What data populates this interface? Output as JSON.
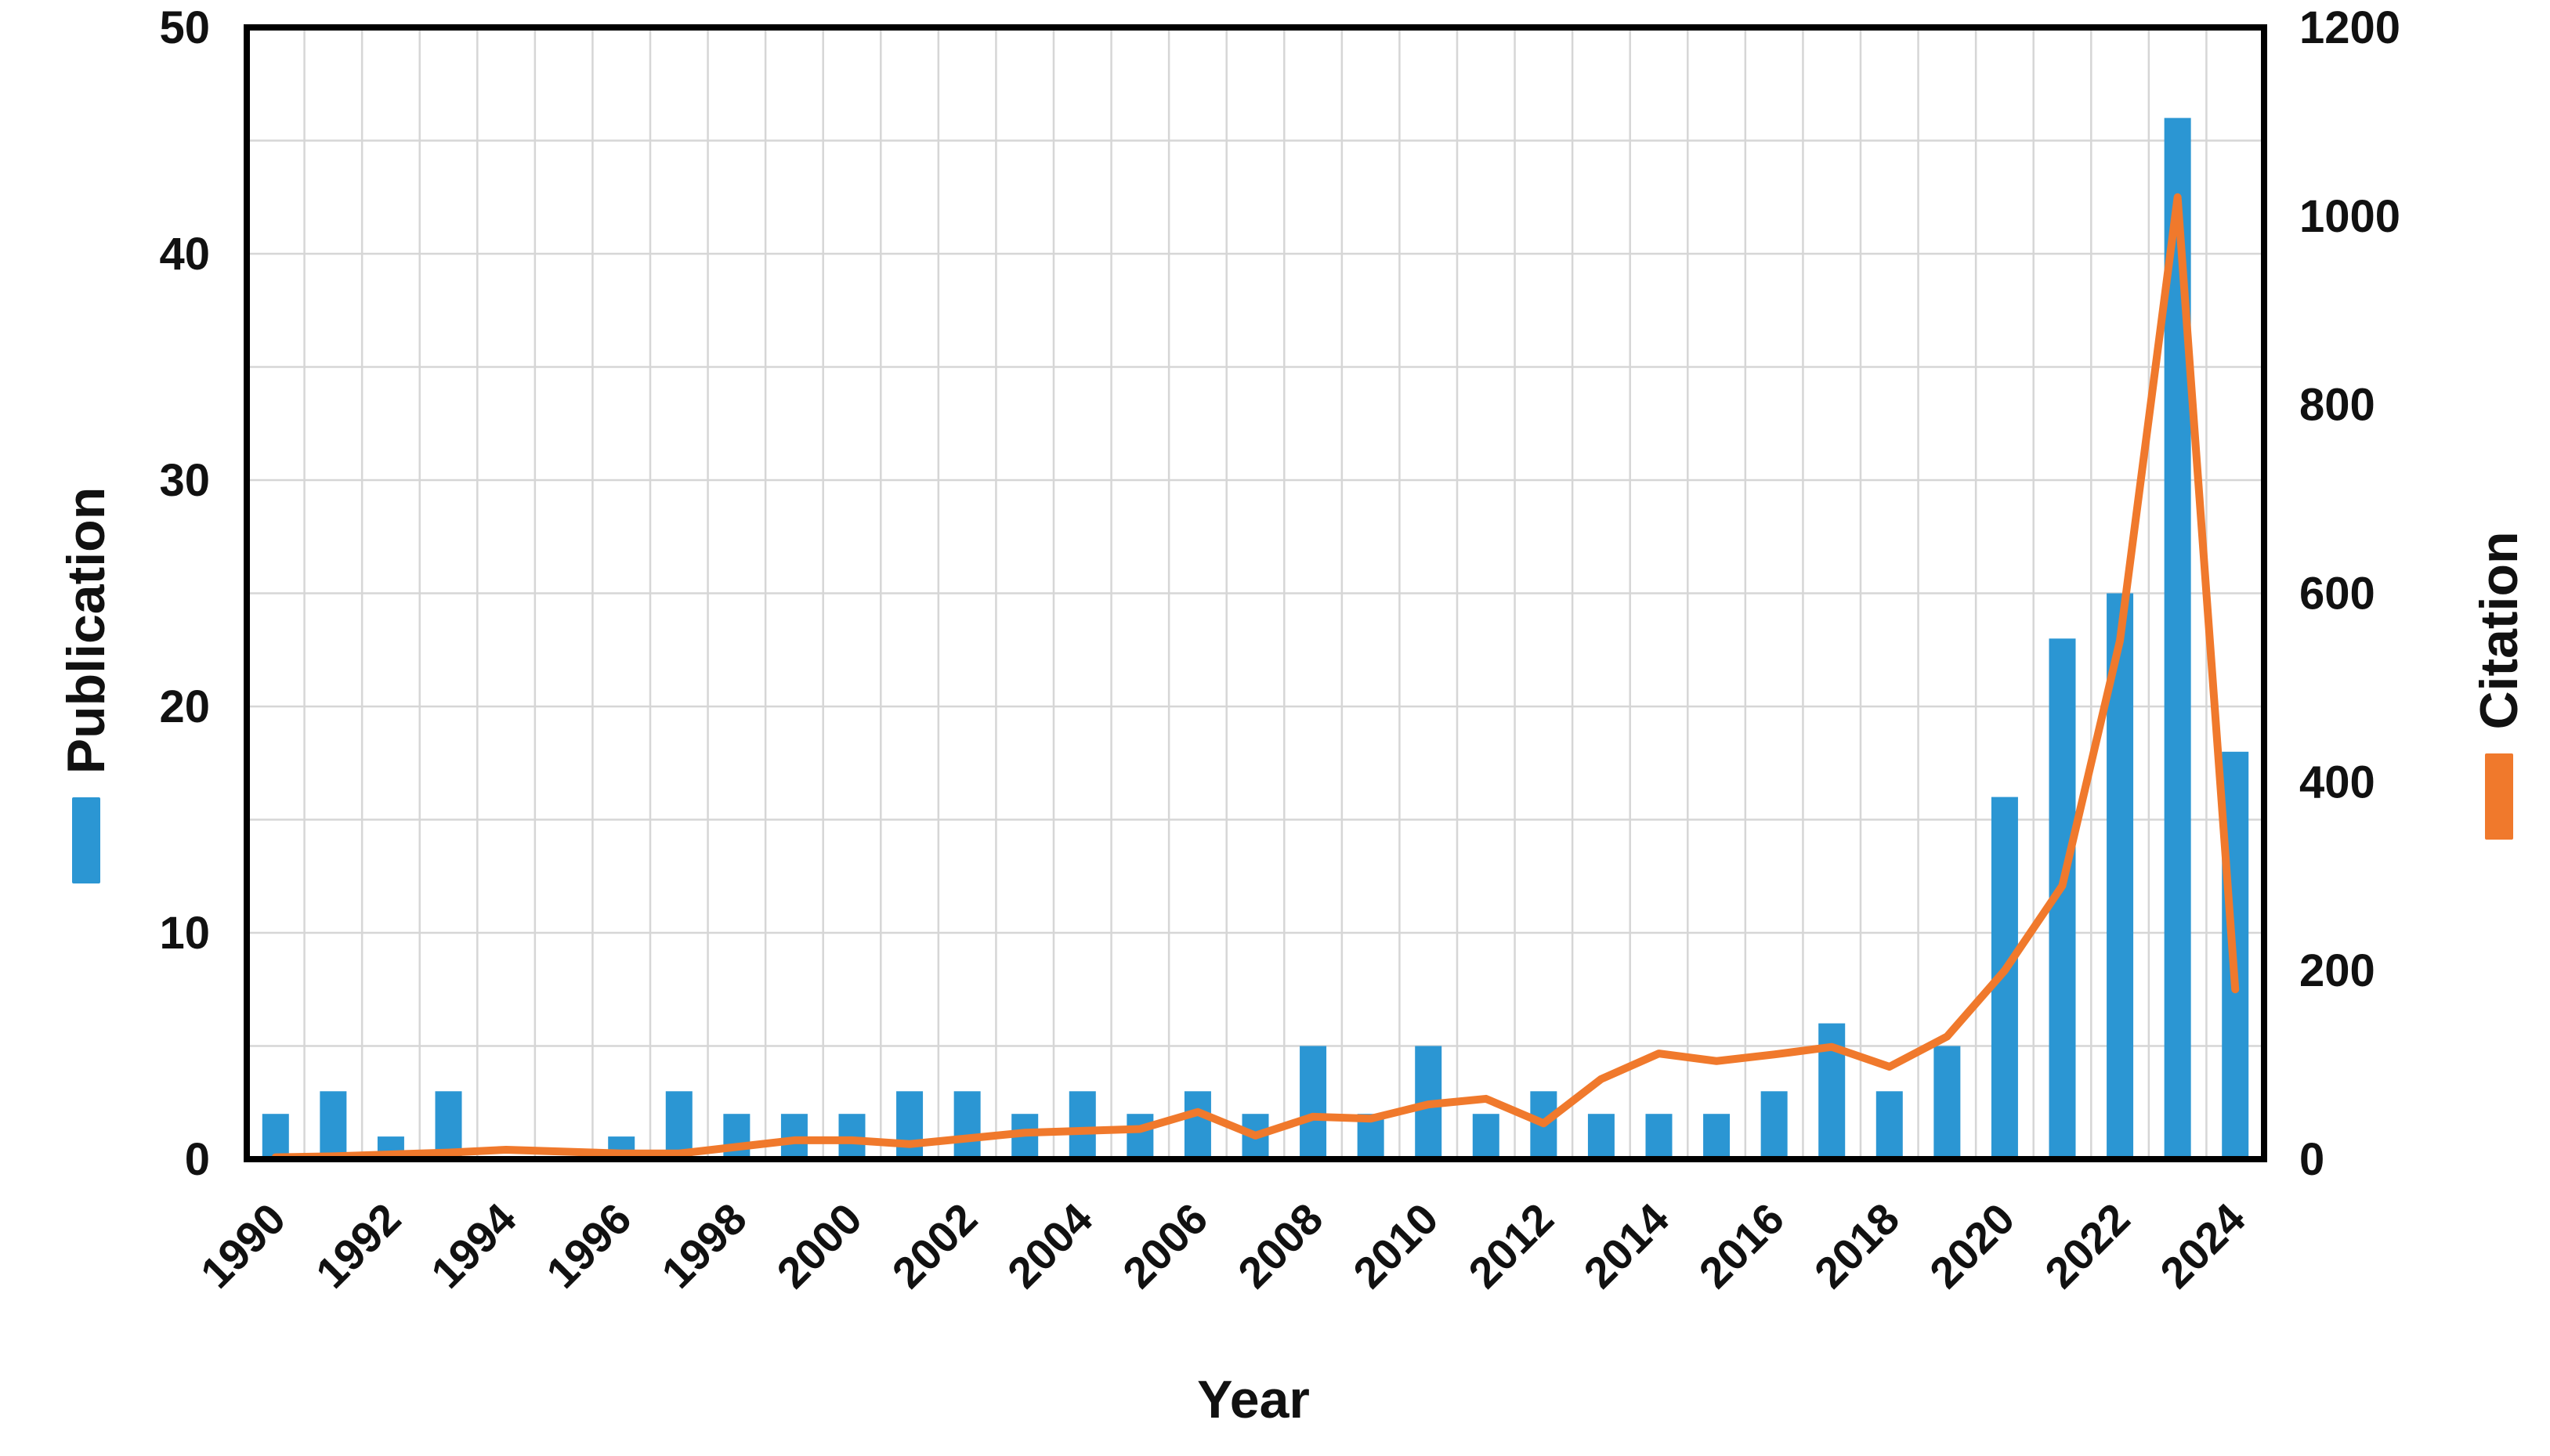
{
  "chart_data": {
    "type": "bar",
    "subtype": "dual-axis-bar-line",
    "categories": [
      1990,
      1991,
      1992,
      1993,
      1994,
      1995,
      1996,
      1997,
      1998,
      1999,
      2000,
      2001,
      2002,
      2003,
      2004,
      2005,
      2006,
      2007,
      2008,
      2009,
      2010,
      2011,
      2012,
      2013,
      2014,
      2015,
      2016,
      2017,
      2018,
      2019,
      2020,
      2021,
      2022,
      2023,
      2024
    ],
    "series": [
      {
        "name": "Publication",
        "type": "bar",
        "axis": "left",
        "color": "#2B96D3",
        "values": [
          2,
          3,
          1,
          3,
          0,
          0,
          1,
          3,
          2,
          2,
          2,
          3,
          3,
          2,
          3,
          2,
          3,
          2,
          5,
          2,
          5,
          2,
          3,
          2,
          2,
          2,
          3,
          6,
          3,
          5,
          16,
          23,
          25,
          46,
          18
        ]
      },
      {
        "name": "Citation",
        "type": "line",
        "axis": "right",
        "color": "#F0792C",
        "values": [
          2,
          3,
          5,
          7,
          10,
          8,
          6,
          6,
          13,
          20,
          20,
          16,
          22,
          28,
          30,
          32,
          50,
          25,
          45,
          43,
          58,
          64,
          38,
          85,
          112,
          104,
          111,
          119,
          98,
          130,
          200,
          290,
          550,
          1020,
          180
        ]
      }
    ],
    "title": "",
    "xlabel": "Year",
    "left_axis": {
      "label": "Publication",
      "min": 0,
      "max": 50,
      "ticks": [
        0,
        10,
        20,
        30,
        40,
        50
      ],
      "grid_step": 5
    },
    "right_axis": {
      "label": "Citation",
      "min": 0,
      "max": 1200,
      "ticks": [
        0,
        200,
        400,
        600,
        800,
        1000,
        1200
      ]
    },
    "x_tick_step": 2,
    "grid": "on",
    "gridline_color": "#D6D6D6",
    "frame_color": "#000000",
    "text_color": "#111111",
    "legend_position": "rotated beside each axis"
  }
}
